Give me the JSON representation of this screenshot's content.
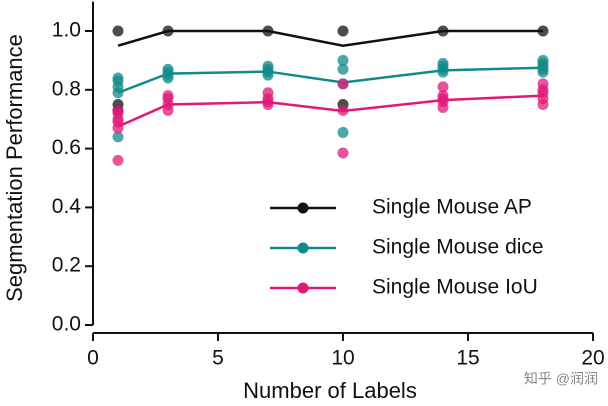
{
  "chart_data": {
    "type": "line",
    "xlabel": "Number of Labels",
    "ylabel": "Segmentation Performance",
    "watermark": "知乎 @润润",
    "xlim": [
      0,
      20
    ],
    "xticks": [
      0,
      5,
      10,
      15,
      20
    ],
    "ylim": [
      0,
      1.1
    ],
    "yticks": [
      {
        "value": 0,
        "label": "0.0"
      },
      {
        "value": 0.2,
        "label": "0.2"
      },
      {
        "value": 0.4,
        "label": "0.4"
      },
      {
        "value": 0.6,
        "label": "0.6"
      },
      {
        "value": 0.8,
        "label": "0.8"
      },
      {
        "value": 1,
        "label": "1.0"
      }
    ],
    "legend": "lower right",
    "x": [
      1,
      3,
      7,
      10,
      14,
      18
    ],
    "series": [
      {
        "name": "Single Mouse AP",
        "color": "#111111",
        "values": [
          0.95,
          1.0,
          1.0,
          0.95,
          1.0,
          1.0
        ],
        "points": {
          "x": [
            1,
            1,
            1,
            3,
            7,
            10,
            10,
            14,
            18
          ],
          "y": [
            1.0,
            0.75,
            0.73,
            1.0,
            1.0,
            1.0,
            0.75,
            1.0,
            1.0
          ]
        }
      },
      {
        "name": "Single Mouse dice",
        "color": "#138a8a",
        "values": [
          0.79,
          0.855,
          0.862,
          0.825,
          0.866,
          0.875
        ],
        "points": {
          "x": [
            1,
            1,
            1,
            1,
            1,
            3,
            3,
            3,
            3,
            7,
            7,
            7,
            7,
            10,
            10,
            10,
            10,
            14,
            14,
            14,
            14,
            18,
            18,
            18,
            18,
            18
          ],
          "y": [
            0.84,
            0.83,
            0.81,
            0.79,
            0.64,
            0.87,
            0.86,
            0.85,
            0.84,
            0.88,
            0.87,
            0.86,
            0.85,
            0.9,
            0.87,
            0.82,
            0.655,
            0.89,
            0.88,
            0.87,
            0.86,
            0.9,
            0.89,
            0.88,
            0.87,
            0.86
          ]
        }
      },
      {
        "name": "Single Mouse IoU",
        "color": "#e0197a",
        "values": [
          0.675,
          0.75,
          0.758,
          0.728,
          0.765,
          0.78
        ],
        "points": {
          "x": [
            1,
            1,
            1,
            1,
            1,
            1,
            3,
            3,
            3,
            3,
            7,
            7,
            7,
            7,
            10,
            10,
            10,
            14,
            14,
            14,
            14,
            14,
            18,
            18,
            18,
            18,
            18
          ],
          "y": [
            0.73,
            0.72,
            0.7,
            0.69,
            0.67,
            0.56,
            0.78,
            0.77,
            0.75,
            0.73,
            0.79,
            0.77,
            0.76,
            0.75,
            0.82,
            0.73,
            0.585,
            0.81,
            0.78,
            0.77,
            0.76,
            0.74,
            0.82,
            0.8,
            0.79,
            0.77,
            0.75
          ]
        }
      }
    ]
  }
}
